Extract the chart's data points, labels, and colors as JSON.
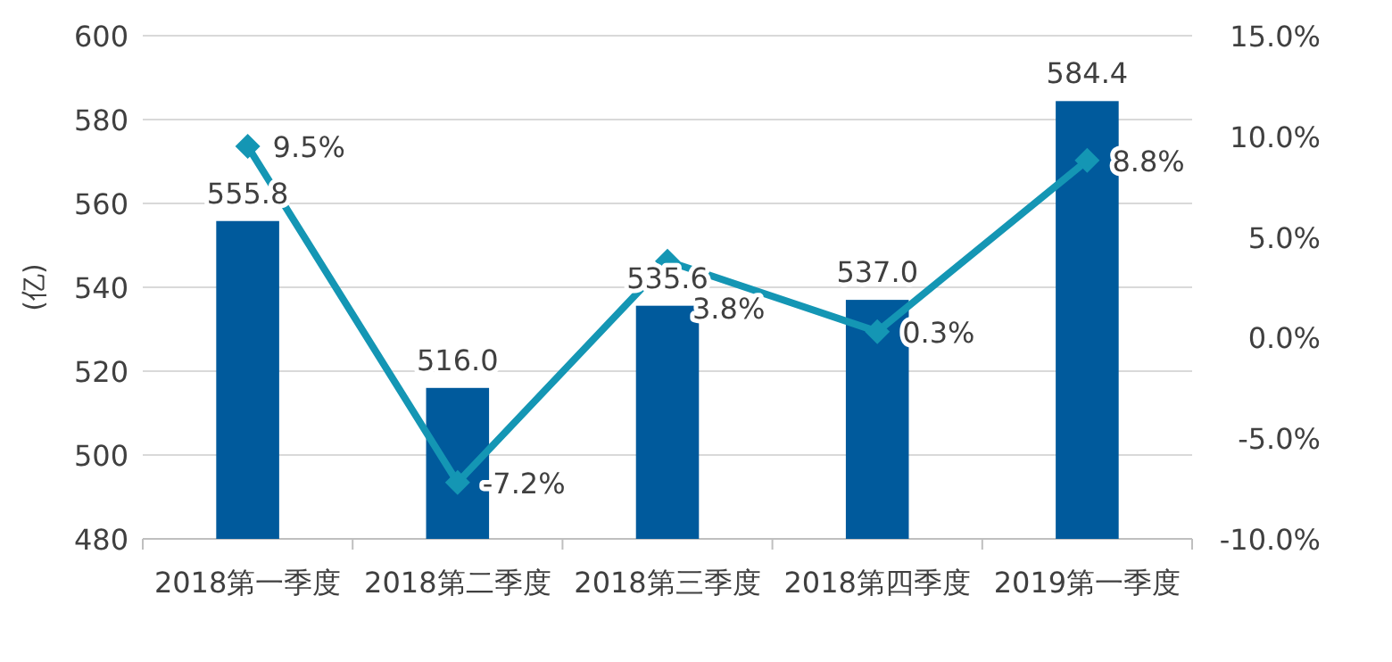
{
  "chart_data": {
    "type": "bar",
    "ylabel": "(亿)",
    "categories": [
      "2018第一季度",
      "2018第二季度",
      "2018第三季度",
      "2018第四季度",
      "2019第一季度"
    ],
    "series": [
      {
        "color": "#005a9c",
        "values": [
          555.8,
          516.0,
          535.6,
          537.0,
          584.4
        ],
        "value_labels": [
          "555.8",
          "516.0",
          "535.6",
          "537.0",
          "584.4"
        ]
      },
      {
        "type": "line",
        "axis": "y2",
        "color": "#1496b4",
        "marker": "diamond",
        "values": [
          9.5,
          -7.2,
          3.8,
          0.3,
          8.8
        ],
        "value_labels": [
          "9.5%",
          "-7.2%",
          "3.8%",
          "0.3%",
          "8.8%"
        ]
      }
    ],
    "ylim": [
      480,
      600
    ],
    "yticks": [
      480,
      500,
      520,
      540,
      560,
      580,
      600
    ],
    "y2lim": [
      -10,
      15
    ],
    "y2ticks": [
      {
        "value": -10,
        "label": "-10.0%"
      },
      {
        "value": -5,
        "label": "-5.0%"
      },
      {
        "value": 0,
        "label": "0.0%"
      },
      {
        "value": 5,
        "label": "5.0%"
      },
      {
        "value": 10,
        "label": "10.0%"
      },
      {
        "value": 15,
        "label": "15.0%"
      }
    ],
    "grid": "y"
  }
}
